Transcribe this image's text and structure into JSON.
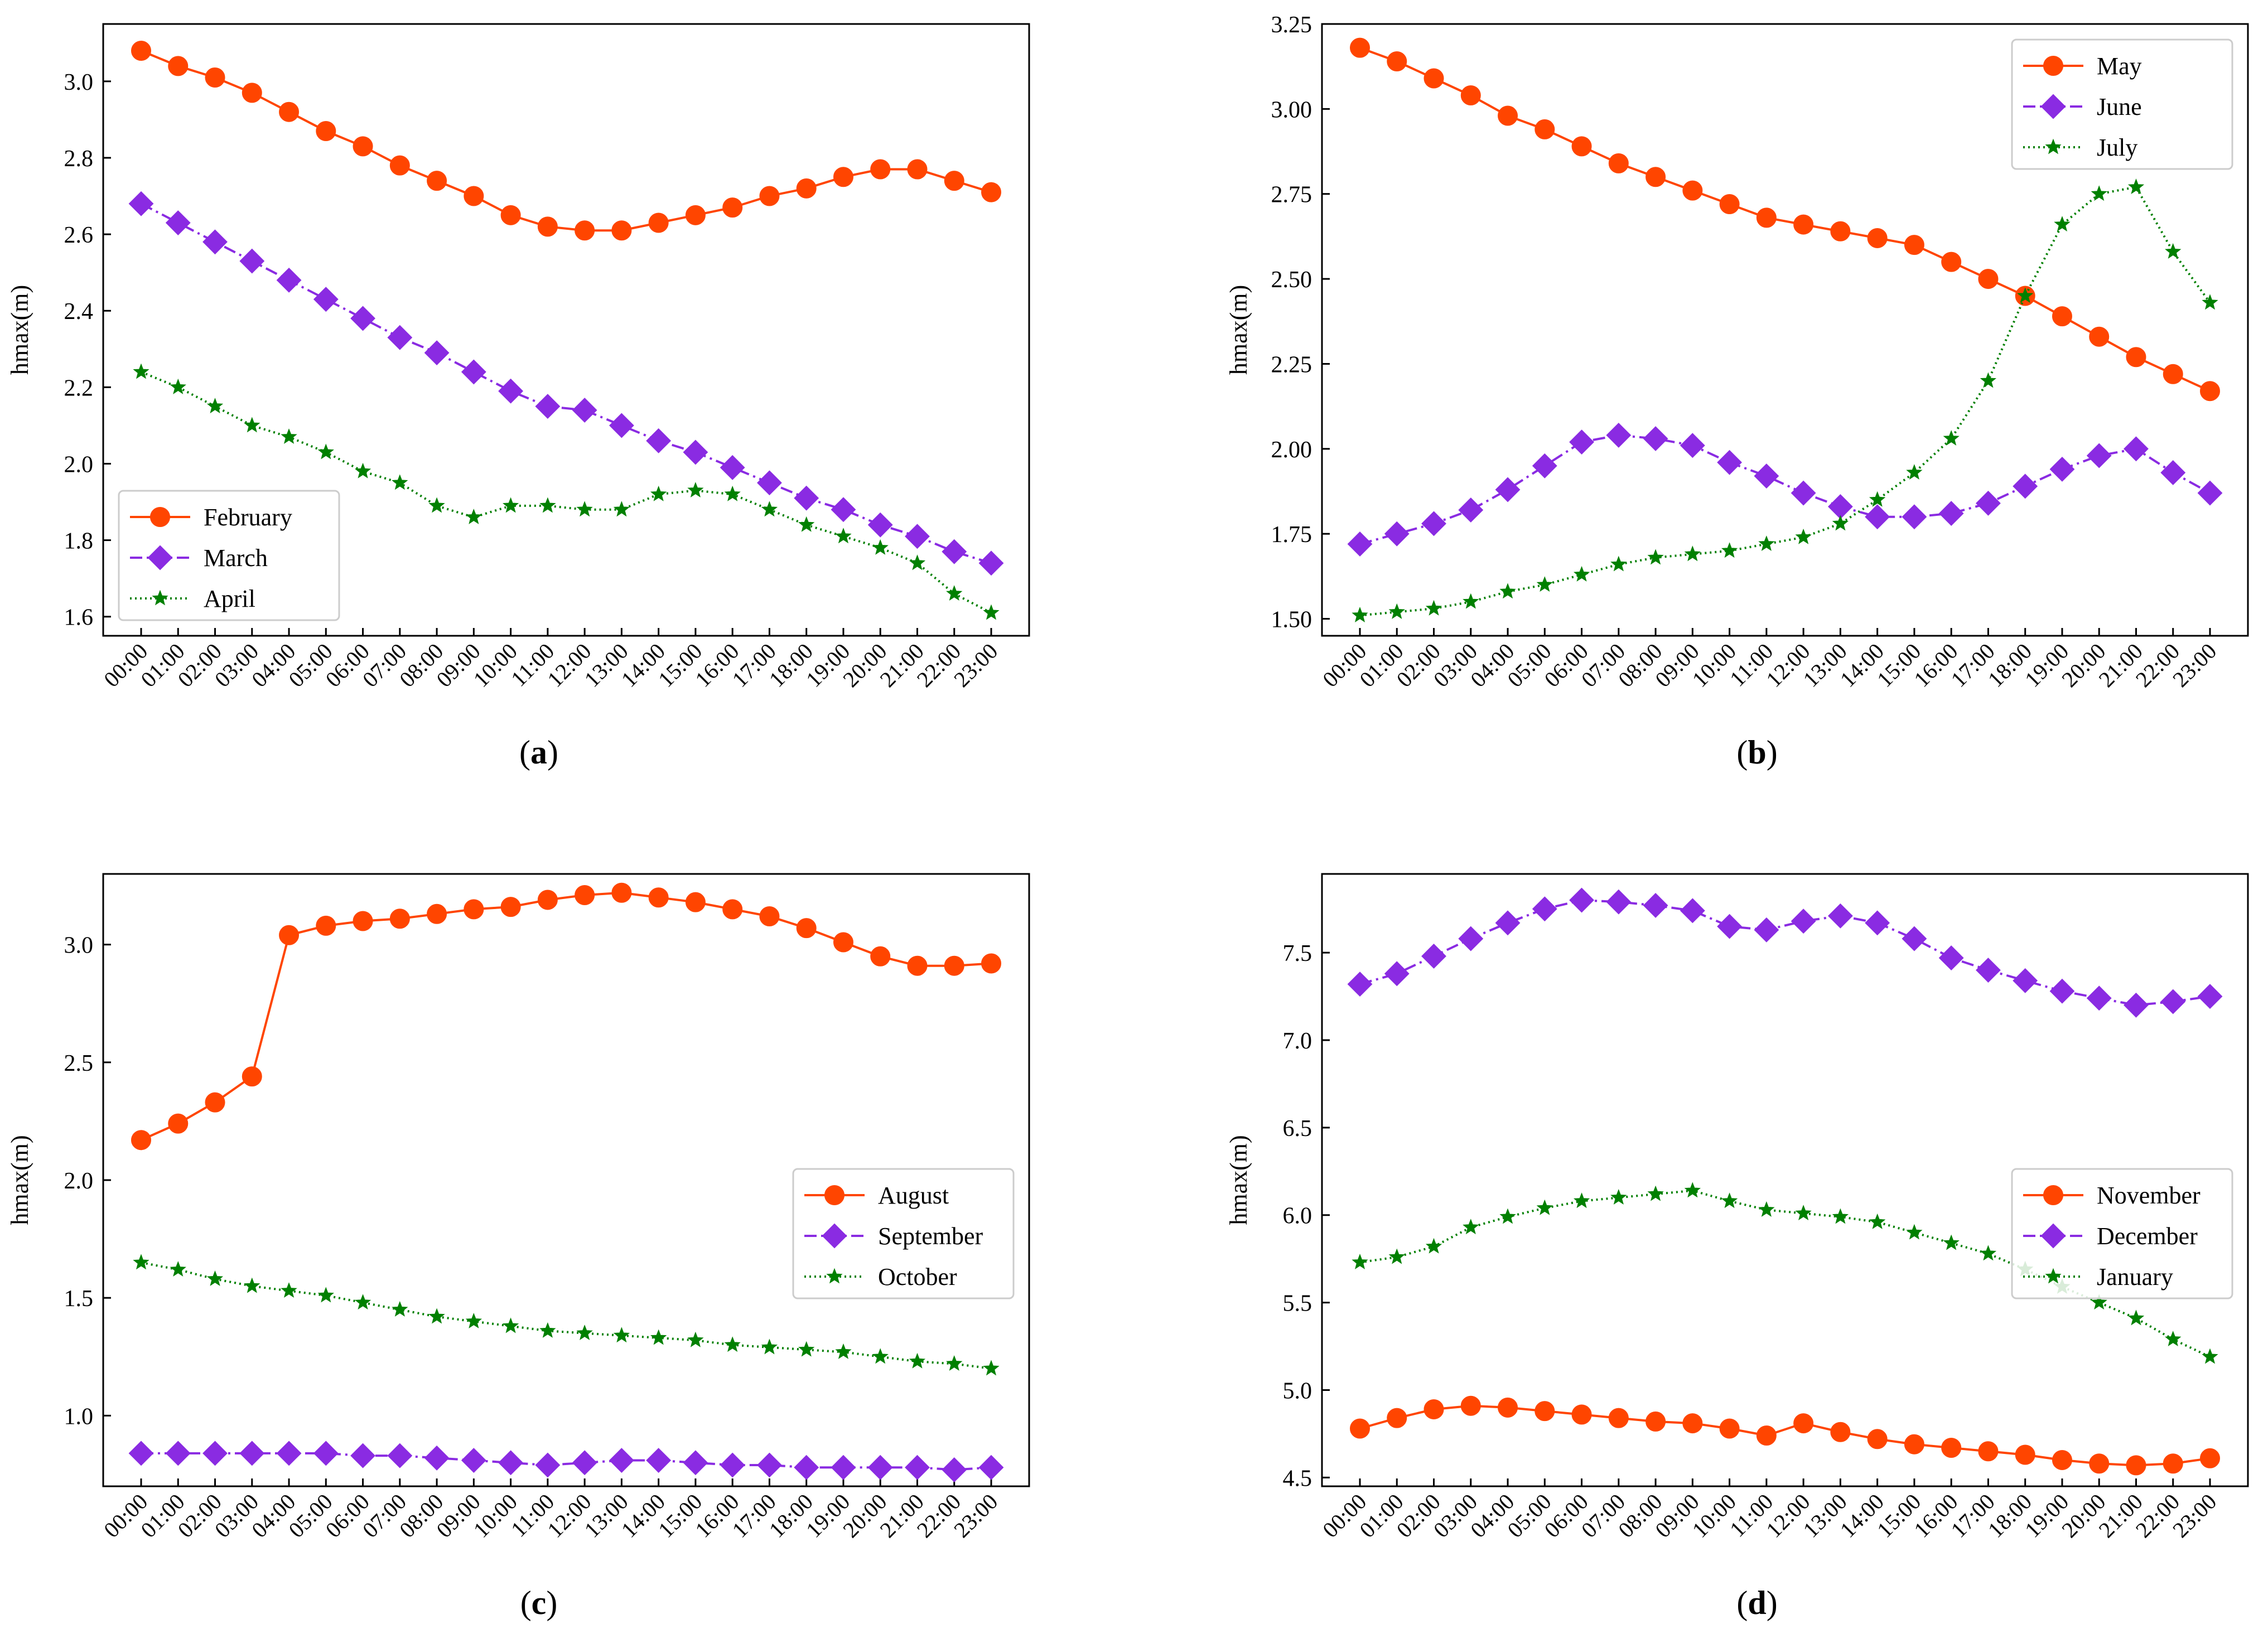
{
  "figure": {
    "panel_labels": [
      {
        "open": "(",
        "letter": "a",
        "close": ")"
      },
      {
        "open": "(",
        "letter": "b",
        "close": ")"
      },
      {
        "open": "(",
        "letter": "c",
        "close": ")"
      },
      {
        "open": "(",
        "letter": "d",
        "close": ")"
      }
    ]
  },
  "colors": {
    "series1": "#FF4500",
    "series2": "#8A2BE2",
    "series3": "#008000"
  },
  "chart_data": [
    {
      "type": "line",
      "panel": "a",
      "ylabel": "hmax(m)",
      "ylim": [
        1.55,
        3.15
      ],
      "yticks": [
        1.6,
        1.8,
        2.0,
        2.2,
        2.4,
        2.6,
        2.8,
        3.0
      ],
      "ytick_labels": [
        "1.6",
        "1.8",
        "2.0",
        "2.2",
        "2.4",
        "2.6",
        "2.8",
        "3.0"
      ],
      "legend_position": "lower-left",
      "categories": [
        "00:00",
        "01:00",
        "02:00",
        "03:00",
        "04:00",
        "05:00",
        "06:00",
        "07:00",
        "08:00",
        "09:00",
        "10:00",
        "11:00",
        "12:00",
        "13:00",
        "14:00",
        "15:00",
        "16:00",
        "17:00",
        "18:00",
        "19:00",
        "20:00",
        "21:00",
        "22:00",
        "23:00"
      ],
      "series": [
        {
          "name": "February",
          "marker": "circle",
          "line": "solid",
          "values": [
            3.08,
            3.04,
            3.01,
            2.97,
            2.92,
            2.87,
            2.83,
            2.78,
            2.74,
            2.7,
            2.65,
            2.62,
            2.61,
            2.61,
            2.63,
            2.65,
            2.67,
            2.7,
            2.72,
            2.75,
            2.77,
            2.77,
            2.74,
            2.71
          ]
        },
        {
          "name": "March",
          "marker": "diamond",
          "line": "dashdot",
          "values": [
            2.68,
            2.63,
            2.58,
            2.53,
            2.48,
            2.43,
            2.38,
            2.33,
            2.29,
            2.24,
            2.19,
            2.15,
            2.14,
            2.1,
            2.06,
            2.03,
            1.99,
            1.95,
            1.91,
            1.88,
            1.84,
            1.81,
            1.77,
            1.74
          ]
        },
        {
          "name": "April",
          "marker": "star",
          "line": "dotted",
          "values": [
            2.24,
            2.2,
            2.15,
            2.1,
            2.07,
            2.03,
            1.98,
            1.95,
            1.89,
            1.86,
            1.89,
            1.89,
            1.88,
            1.88,
            1.92,
            1.93,
            1.92,
            1.88,
            1.84,
            1.81,
            1.78,
            1.74,
            1.66,
            1.61
          ]
        }
      ]
    },
    {
      "type": "line",
      "panel": "b",
      "ylabel": "hmax(m)",
      "ylim": [
        1.45,
        3.25
      ],
      "yticks": [
        1.5,
        1.75,
        2.0,
        2.25,
        2.5,
        2.75,
        3.0,
        3.25
      ],
      "ytick_labels": [
        "1.50",
        "1.75",
        "2.00",
        "2.25",
        "2.50",
        "2.75",
        "3.00",
        "3.25"
      ],
      "legend_position": "upper-right",
      "categories": [
        "00:00",
        "01:00",
        "02:00",
        "03:00",
        "04:00",
        "05:00",
        "06:00",
        "07:00",
        "08:00",
        "09:00",
        "10:00",
        "11:00",
        "12:00",
        "13:00",
        "14:00",
        "15:00",
        "16:00",
        "17:00",
        "18:00",
        "19:00",
        "20:00",
        "21:00",
        "22:00",
        "23:00"
      ],
      "series": [
        {
          "name": "May",
          "marker": "circle",
          "line": "solid",
          "values": [
            3.18,
            3.14,
            3.09,
            3.04,
            2.98,
            2.94,
            2.89,
            2.84,
            2.8,
            2.76,
            2.72,
            2.68,
            2.66,
            2.64,
            2.62,
            2.6,
            2.55,
            2.5,
            2.45,
            2.39,
            2.33,
            2.27,
            2.22,
            2.17
          ]
        },
        {
          "name": "June",
          "marker": "diamond",
          "line": "dashdot",
          "values": [
            1.72,
            1.75,
            1.78,
            1.82,
            1.88,
            1.95,
            2.02,
            2.04,
            2.03,
            2.01,
            1.96,
            1.92,
            1.87,
            1.83,
            1.8,
            1.8,
            1.81,
            1.84,
            1.89,
            1.94,
            1.98,
            2.0,
            1.93,
            1.87
          ]
        },
        {
          "name": "July",
          "marker": "star",
          "line": "dotted",
          "values": [
            1.51,
            1.52,
            1.53,
            1.55,
            1.58,
            1.6,
            1.63,
            1.66,
            1.68,
            1.69,
            1.7,
            1.72,
            1.74,
            1.78,
            1.85,
            1.93,
            2.03,
            2.2,
            2.45,
            2.66,
            2.75,
            2.77,
            2.58,
            2.43
          ]
        }
      ]
    },
    {
      "type": "line",
      "panel": "c",
      "ylabel": "hmax(m)",
      "ylim": [
        0.7,
        3.3
      ],
      "yticks": [
        1.0,
        1.5,
        2.0,
        2.5,
        3.0
      ],
      "ytick_labels": [
        "1.0",
        "1.5",
        "2.0",
        "2.5",
        "3.0"
      ],
      "legend_position": "center-right",
      "categories": [
        "00:00",
        "01:00",
        "02:00",
        "03:00",
        "04:00",
        "05:00",
        "06:00",
        "07:00",
        "08:00",
        "09:00",
        "10:00",
        "11:00",
        "12:00",
        "13:00",
        "14:00",
        "15:00",
        "16:00",
        "17:00",
        "18:00",
        "19:00",
        "20:00",
        "21:00",
        "22:00",
        "23:00"
      ],
      "series": [
        {
          "name": "August",
          "marker": "circle",
          "line": "solid",
          "values": [
            2.17,
            2.24,
            2.33,
            2.44,
            3.04,
            3.08,
            3.1,
            3.11,
            3.13,
            3.15,
            3.16,
            3.19,
            3.21,
            3.22,
            3.2,
            3.18,
            3.15,
            3.12,
            3.07,
            3.01,
            2.95,
            2.91,
            2.91,
            2.92
          ]
        },
        {
          "name": "September",
          "marker": "diamond",
          "line": "dashdot",
          "values": [
            0.84,
            0.84,
            0.84,
            0.84,
            0.84,
            0.84,
            0.83,
            0.83,
            0.82,
            0.81,
            0.8,
            0.79,
            0.8,
            0.81,
            0.81,
            0.8,
            0.79,
            0.79,
            0.78,
            0.78,
            0.78,
            0.78,
            0.77,
            0.78
          ]
        },
        {
          "name": "October",
          "marker": "star",
          "line": "dotted",
          "values": [
            1.65,
            1.62,
            1.58,
            1.55,
            1.53,
            1.51,
            1.48,
            1.45,
            1.42,
            1.4,
            1.38,
            1.36,
            1.35,
            1.34,
            1.33,
            1.32,
            1.3,
            1.29,
            1.28,
            1.27,
            1.25,
            1.23,
            1.22,
            1.2
          ]
        }
      ]
    },
    {
      "type": "line",
      "panel": "d",
      "ylabel": "hmax(m)",
      "ylim": [
        4.45,
        7.95
      ],
      "yticks": [
        4.5,
        5.0,
        5.5,
        6.0,
        6.5,
        7.0,
        7.5
      ],
      "ytick_labels": [
        "4.5",
        "5.0",
        "5.5",
        "6.0",
        "6.5",
        "7.0",
        "7.5"
      ],
      "legend_position": "center-right",
      "categories": [
        "00:00",
        "01:00",
        "02:00",
        "03:00",
        "04:00",
        "05:00",
        "06:00",
        "07:00",
        "08:00",
        "09:00",
        "10:00",
        "11:00",
        "12:00",
        "13:00",
        "14:00",
        "15:00",
        "16:00",
        "17:00",
        "18:00",
        "19:00",
        "20:00",
        "21:00",
        "22:00",
        "23:00"
      ],
      "series": [
        {
          "name": "November",
          "marker": "circle",
          "line": "solid",
          "values": [
            4.78,
            4.84,
            4.89,
            4.91,
            4.9,
            4.88,
            4.86,
            4.84,
            4.82,
            4.81,
            4.78,
            4.74,
            4.81,
            4.76,
            4.72,
            4.69,
            4.67,
            4.65,
            4.63,
            4.6,
            4.58,
            4.57,
            4.58,
            4.61
          ]
        },
        {
          "name": "December",
          "marker": "diamond",
          "line": "dashdot",
          "values": [
            7.32,
            7.38,
            7.48,
            7.58,
            7.67,
            7.75,
            7.8,
            7.79,
            7.77,
            7.74,
            7.65,
            7.63,
            7.68,
            7.71,
            7.67,
            7.58,
            7.47,
            7.4,
            7.34,
            7.28,
            7.24,
            7.2,
            7.22,
            7.25
          ]
        },
        {
          "name": "January",
          "marker": "star",
          "line": "dotted",
          "values": [
            5.73,
            5.76,
            5.82,
            5.93,
            5.99,
            6.04,
            6.08,
            6.1,
            6.12,
            6.14,
            6.08,
            6.03,
            6.01,
            5.99,
            5.96,
            5.9,
            5.84,
            5.78,
            5.69,
            5.59,
            5.5,
            5.41,
            5.29,
            5.19
          ]
        }
      ]
    }
  ]
}
